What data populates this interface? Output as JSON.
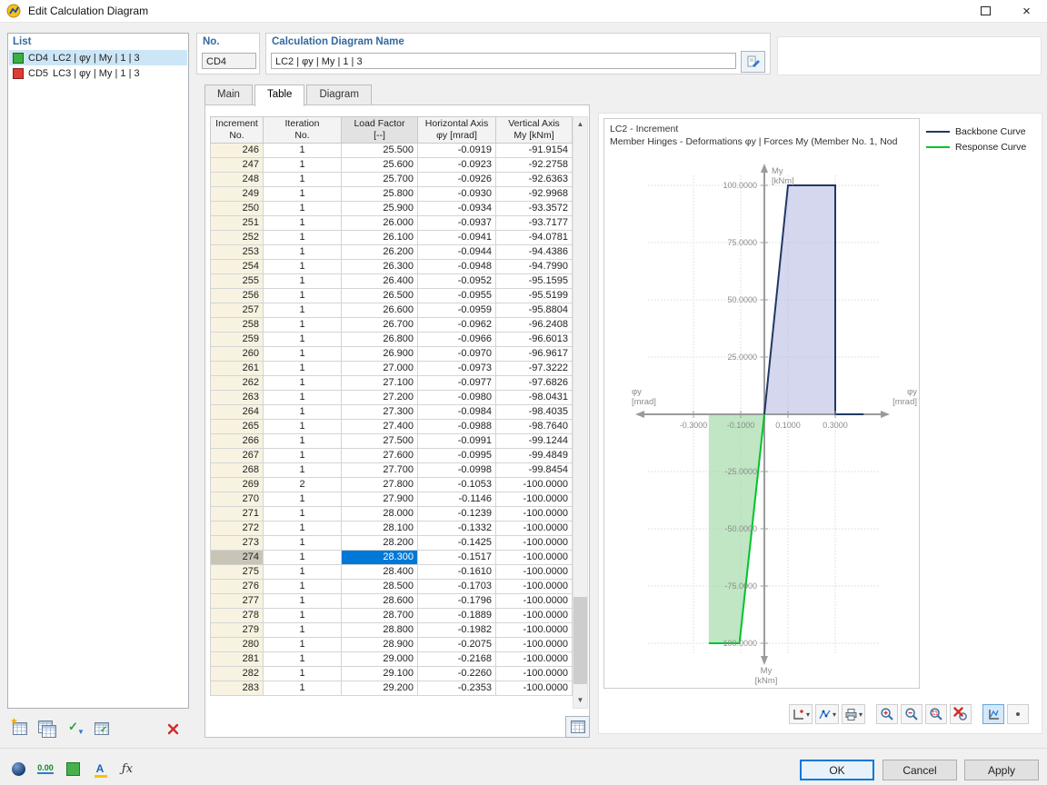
{
  "window": {
    "title": "Edit Calculation Diagram",
    "close_glyph": "×"
  },
  "list_panel": {
    "header": "List",
    "items": [
      {
        "code": "CD4",
        "label": "LC2 | φy | My | 1 | 3",
        "color": "#3cb043",
        "selected": true
      },
      {
        "code": "CD5",
        "label": "LC3 | φy | My | 1 | 3",
        "color": "#e03c31",
        "selected": false
      }
    ],
    "toolbar_icons": [
      "new-diagram",
      "copy-diagram",
      "apply-check",
      "import-table",
      "delete"
    ]
  },
  "header": {
    "no_label": "No.",
    "no_value": "CD4",
    "name_label": "Calculation Diagram Name",
    "name_value": "LC2 | φy | My | 1 | 3"
  },
  "tabs": [
    {
      "label": "Main",
      "active": false
    },
    {
      "label": "Table",
      "active": true
    },
    {
      "label": "Diagram",
      "active": false
    }
  ],
  "table": {
    "columns": [
      {
        "line1": "Increment",
        "line2": "No."
      },
      {
        "line1": "Iteration",
        "line2": "No."
      },
      {
        "line1": "Load Factor",
        "line2": "[--]"
      },
      {
        "line1": "Horizontal Axis",
        "line2": "φy [mrad]"
      },
      {
        "line1": "Vertical Axis",
        "line2": "My [kNm]"
      }
    ],
    "selected_row_index": 28,
    "selected_col_index": 2,
    "selected_increment": "274",
    "selected_value": "28.300",
    "rows": [
      [
        "246",
        "1",
        "25.500",
        "-0.0919",
        "-91.9154"
      ],
      [
        "247",
        "1",
        "25.600",
        "-0.0923",
        "-92.2758"
      ],
      [
        "248",
        "1",
        "25.700",
        "-0.0926",
        "-92.6363"
      ],
      [
        "249",
        "1",
        "25.800",
        "-0.0930",
        "-92.9968"
      ],
      [
        "250",
        "1",
        "25.900",
        "-0.0934",
        "-93.3572"
      ],
      [
        "251",
        "1",
        "26.000",
        "-0.0937",
        "-93.7177"
      ],
      [
        "252",
        "1",
        "26.100",
        "-0.0941",
        "-94.0781"
      ],
      [
        "253",
        "1",
        "26.200",
        "-0.0944",
        "-94.4386"
      ],
      [
        "254",
        "1",
        "26.300",
        "-0.0948",
        "-94.7990"
      ],
      [
        "255",
        "1",
        "26.400",
        "-0.0952",
        "-95.1595"
      ],
      [
        "256",
        "1",
        "26.500",
        "-0.0955",
        "-95.5199"
      ],
      [
        "257",
        "1",
        "26.600",
        "-0.0959",
        "-95.8804"
      ],
      [
        "258",
        "1",
        "26.700",
        "-0.0962",
        "-96.2408"
      ],
      [
        "259",
        "1",
        "26.800",
        "-0.0966",
        "-96.6013"
      ],
      [
        "260",
        "1",
        "26.900",
        "-0.0970",
        "-96.9617"
      ],
      [
        "261",
        "1",
        "27.000",
        "-0.0973",
        "-97.3222"
      ],
      [
        "262",
        "1",
        "27.100",
        "-0.0977",
        "-97.6826"
      ],
      [
        "263",
        "1",
        "27.200",
        "-0.0980",
        "-98.0431"
      ],
      [
        "264",
        "1",
        "27.300",
        "-0.0984",
        "-98.4035"
      ],
      [
        "265",
        "1",
        "27.400",
        "-0.0988",
        "-98.7640"
      ],
      [
        "266",
        "1",
        "27.500",
        "-0.0991",
        "-99.1244"
      ],
      [
        "267",
        "1",
        "27.600",
        "-0.0995",
        "-99.4849"
      ],
      [
        "268",
        "1",
        "27.700",
        "-0.0998",
        "-99.8454"
      ],
      [
        "269",
        "2",
        "27.800",
        "-0.1053",
        "-100.0000"
      ],
      [
        "270",
        "1",
        "27.900",
        "-0.1146",
        "-100.0000"
      ],
      [
        "271",
        "1",
        "28.000",
        "-0.1239",
        "-100.0000"
      ],
      [
        "272",
        "1",
        "28.100",
        "-0.1332",
        "-100.0000"
      ],
      [
        "273",
        "1",
        "28.200",
        "-0.1425",
        "-100.0000"
      ],
      [
        "274",
        "1",
        "28.300",
        "-0.1517",
        "-100.0000"
      ],
      [
        "275",
        "1",
        "28.400",
        "-0.1610",
        "-100.0000"
      ],
      [
        "276",
        "1",
        "28.500",
        "-0.1703",
        "-100.0000"
      ],
      [
        "277",
        "1",
        "28.600",
        "-0.1796",
        "-100.0000"
      ],
      [
        "278",
        "1",
        "28.700",
        "-0.1889",
        "-100.0000"
      ],
      [
        "279",
        "1",
        "28.800",
        "-0.1982",
        "-100.0000"
      ],
      [
        "280",
        "1",
        "28.900",
        "-0.2075",
        "-100.0000"
      ],
      [
        "281",
        "1",
        "29.000",
        "-0.2168",
        "-100.0000"
      ],
      [
        "282",
        "1",
        "29.100",
        "-0.2260",
        "-100.0000"
      ],
      [
        "283",
        "1",
        "29.200",
        "-0.2353",
        "-100.0000"
      ]
    ]
  },
  "chart_data": {
    "type": "line",
    "title": "LC2 - Increment",
    "subtitle": "Member Hinges - Deformations φy | Forces My (Member No. 1, Nod",
    "x_axis_label_lines": [
      "φy",
      "[mrad]"
    ],
    "y_axis_label_lines": [
      "My",
      "[kNm]"
    ],
    "x_ticks": [
      -0.3,
      -0.1,
      0.1,
      0.3
    ],
    "x_tick_labels": [
      "-0.3000",
      "-0.1000",
      "0.1000",
      "0.3000"
    ],
    "y_ticks": [
      100,
      75,
      50,
      25,
      -25,
      -50,
      -75,
      -100
    ],
    "y_tick_labels": [
      "100.0000",
      "75.0000",
      "50.0000",
      "25.0000",
      "-25.0000",
      "-50.0000",
      "-75.0000",
      "-100.0000"
    ],
    "xlim": [
      -0.42,
      0.42
    ],
    "ylim": [
      -112,
      112
    ],
    "grid": "dashed",
    "legend_position": "top-right",
    "series": [
      {
        "name": "Backbone Curve",
        "color": "#203864",
        "fill": "#b9bce2",
        "fill_opacity": 0.6,
        "points": [
          [
            0,
            0
          ],
          [
            0.1,
            100
          ],
          [
            0.3,
            100
          ],
          [
            0.3,
            0
          ],
          [
            0.42,
            0
          ]
        ],
        "fill_points": [
          [
            0,
            0
          ],
          [
            0.1,
            100
          ],
          [
            0.3,
            100
          ],
          [
            0.3,
            0
          ]
        ]
      },
      {
        "name": "Response Curve",
        "color": "#00c32b",
        "fill": "#9ed8a4",
        "fill_opacity": 0.65,
        "points": [
          [
            0,
            0
          ],
          [
            -0.1053,
            -100
          ],
          [
            -0.2353,
            -100
          ]
        ],
        "fill_points": [
          [
            0,
            0
          ],
          [
            -0.1053,
            -100
          ],
          [
            -0.2353,
            -100
          ],
          [
            -0.2353,
            0
          ]
        ]
      }
    ]
  },
  "chart_toolbar_icons": [
    "add-axis-menu",
    "curve-style-menu",
    "print-menu",
    "zoom-in",
    "zoom-out",
    "zoom-window",
    "zoom-reset",
    "diagram-display-toggle",
    "marker-dot"
  ],
  "bottom_toolbar_icons": [
    "display-options",
    "decimal-places",
    "colors",
    "font-settings",
    "formula"
  ],
  "bottom_toolbar": {
    "decimal_places_text": "0.00"
  },
  "footer": {
    "ok": "OK",
    "cancel": "Cancel",
    "apply": "Apply"
  }
}
